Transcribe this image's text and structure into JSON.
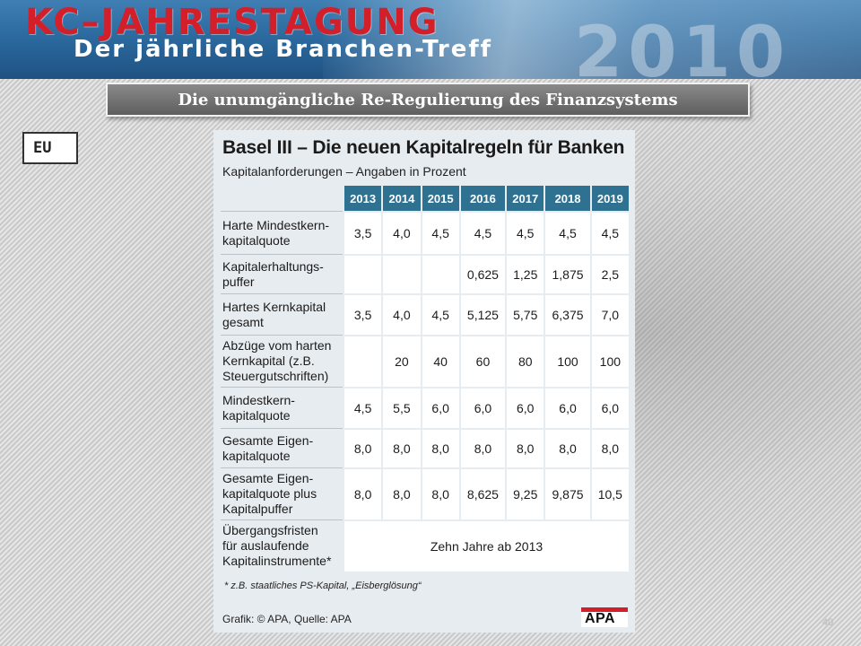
{
  "banner": {
    "title": "KC–JAHRESTAGUNG",
    "subtitle": "Der jährliche Branchen-Treff",
    "year": "2010"
  },
  "slide": {
    "subtitle": "Die unumgängliche Re-Regulierung des Finanzsystems",
    "region_label": "EU",
    "page_number": "40"
  },
  "graphic": {
    "title": "Basel III – Die neuen Kapitalregeln für Banken",
    "subtitle": "Kapitalanforderungen – Angaben in Prozent",
    "years": [
      "2013",
      "2014",
      "2015",
      "2016",
      "2017",
      "2018",
      "2019"
    ],
    "rows": [
      {
        "label": "Harte Mindestkern-\nkapitalquote",
        "values": [
          "3,5",
          "4,0",
          "4,5",
          "4,5",
          "4,5",
          "4,5",
          "4,5"
        ]
      },
      {
        "label": "Kapitalerhaltungs-\npuffer",
        "values": [
          "",
          "",
          "",
          "0,625",
          "1,25",
          "1,875",
          "2,5"
        ]
      },
      {
        "label": "Hartes Kernkapital\ngesamt",
        "values": [
          "3,5",
          "4,0",
          "4,5",
          "5,125",
          "5,75",
          "6,375",
          "7,0"
        ]
      },
      {
        "label": "Abzüge vom harten\nKernkapital (z.B.\nSteuergutschriften)",
        "values": [
          "",
          "20",
          "40",
          "60",
          "80",
          "100",
          "100"
        ]
      },
      {
        "label": "Mindestkern-\nkapitalquote",
        "values": [
          "4,5",
          "5,5",
          "6,0",
          "6,0",
          "6,0",
          "6,0",
          "6,0"
        ]
      },
      {
        "label": "Gesamte Eigen-\nkapitalquote",
        "values": [
          "8,0",
          "8,0",
          "8,0",
          "8,0",
          "8,0",
          "8,0",
          "8,0"
        ]
      },
      {
        "label": "Gesamte Eigen-\nkapitalquote plus\nKapitalpuffer",
        "values": [
          "8,0",
          "8,0",
          "8,0",
          "8,625",
          "9,25",
          "9,875",
          "10,5"
        ]
      }
    ],
    "last_row": {
      "label": "Übergangsfristen\nfür auslaufende\nKapitalinstrumente*",
      "value": "Zehn Jahre ab 2013"
    },
    "footnote": "* z.B. staatliches PS-Kapital, „Eisberglösung“",
    "credit": "Grafik: © APA, Quelle: APA",
    "logo": "APA",
    "colors": {
      "header": "#2e7190",
      "accent": "#d21f2a"
    }
  }
}
